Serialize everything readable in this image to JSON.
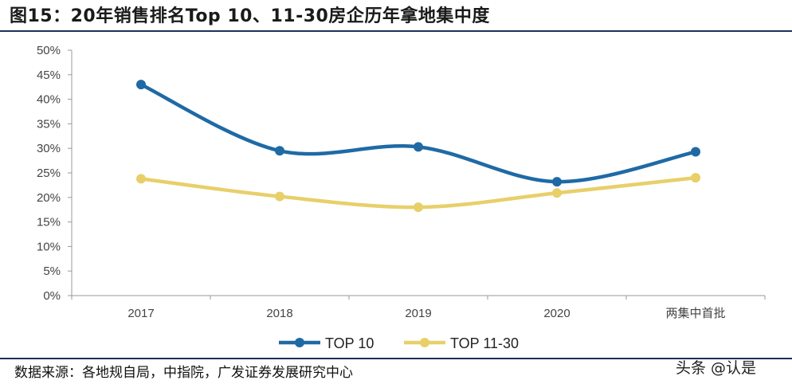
{
  "title": "图15：20年销售排名Top 10、11-30房企历年拿地集中度",
  "source": "数据来源：各地规自局，中指院，广发证券发展研究中心",
  "watermark": "头条 @认是",
  "chart_data": {
    "type": "line",
    "categories": [
      "2017",
      "2018",
      "2019",
      "2020",
      "两集中首批"
    ],
    "ylim": [
      0,
      50
    ],
    "yticks": [
      "0%",
      "5%",
      "10%",
      "15%",
      "20%",
      "25%",
      "30%",
      "35%",
      "40%",
      "45%",
      "50%"
    ],
    "grid": false,
    "legend": "bottom",
    "series": [
      {
        "name": "TOP 10",
        "color": "#1f6aa5",
        "values": [
          43.0,
          29.5,
          30.3,
          23.2,
          29.3
        ]
      },
      {
        "name": "TOP 11-30",
        "color": "#e8cf6a",
        "values": [
          23.8,
          20.2,
          18.0,
          20.9,
          24.0
        ]
      }
    ]
  }
}
